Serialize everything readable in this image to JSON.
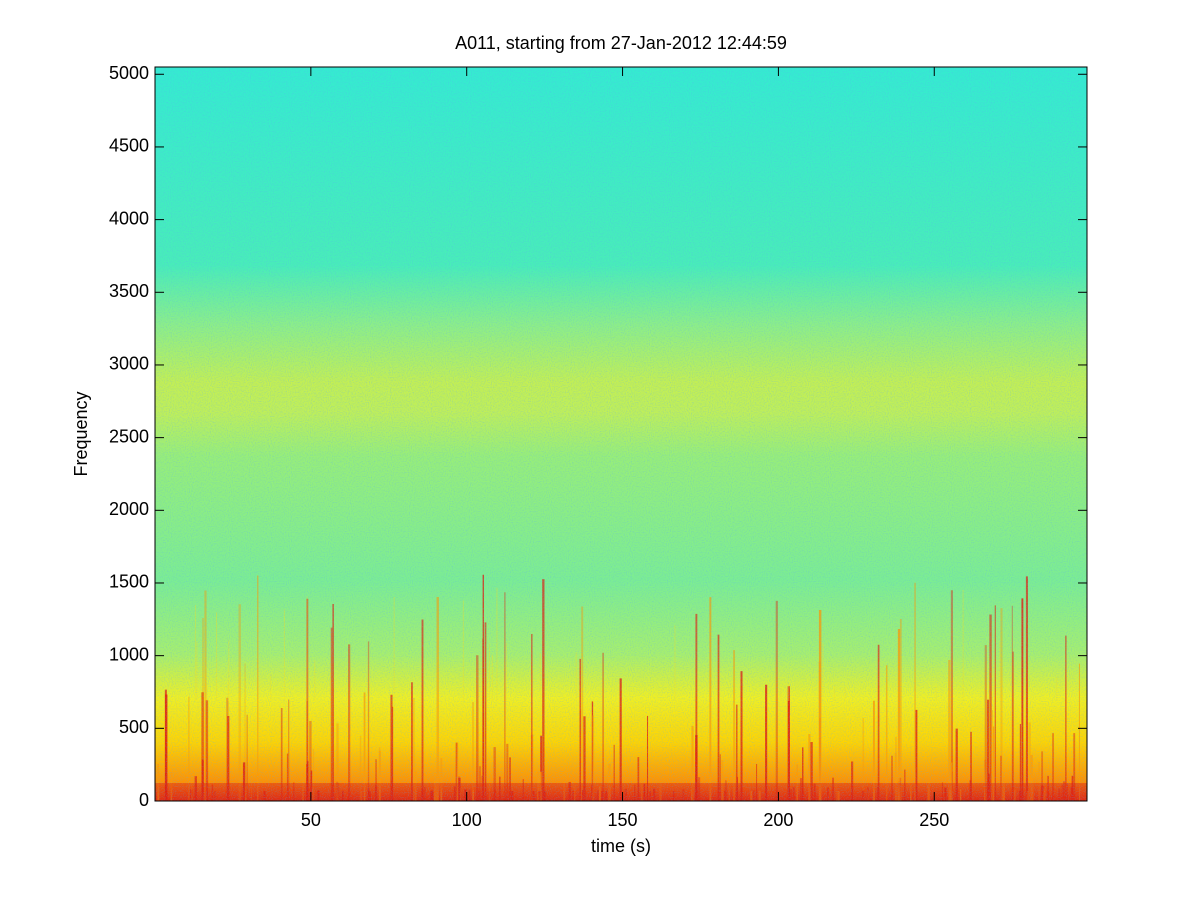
{
  "chart_data": {
    "type": "spectrogram",
    "title": "A011, starting from 27-Jan-2012 12:44:59",
    "xlabel": "time (s)",
    "ylabel": "Frequency",
    "xlim": [
      0,
      299
    ],
    "ylim": [
      0,
      5050
    ],
    "xticks": [
      50,
      100,
      150,
      200,
      250
    ],
    "yticks": [
      0,
      500,
      1000,
      1500,
      2000,
      2500,
      3000,
      3500,
      4000,
      4500,
      5000
    ]
  }
}
